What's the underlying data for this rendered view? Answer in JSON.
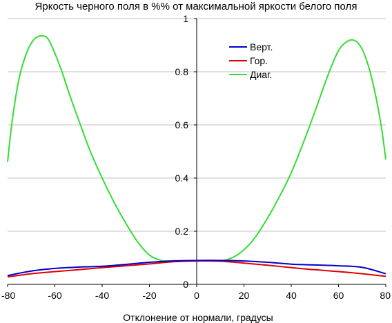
{
  "chart_data": {
    "type": "line",
    "title": "Яркость черного поля в %% от максимальной яркости белого поля",
    "xlabel": "Отклонение от нормали, градусы",
    "ylabel": "",
    "xlim": [
      -80,
      80
    ],
    "ylim": [
      0,
      1
    ],
    "x_ticks": [
      "-80",
      "-60",
      "-40",
      "-20",
      "0",
      "20",
      "40",
      "60",
      "80"
    ],
    "y_ticks": [
      "0",
      "0.2",
      "0.4",
      "0.6",
      "0.8",
      "1"
    ],
    "grid": "horizontal",
    "legend_position": "top-right",
    "series": [
      {
        "name": "Верт.",
        "color": "#0000cc",
        "x": [
          -80,
          -70,
          -60,
          -50,
          -40,
          -30,
          -20,
          -10,
          0,
          10,
          20,
          30,
          40,
          50,
          60,
          70,
          80
        ],
        "y": [
          0.033,
          0.05,
          0.06,
          0.065,
          0.068,
          0.075,
          0.083,
          0.088,
          0.09,
          0.09,
          0.088,
          0.083,
          0.076,
          0.073,
          0.07,
          0.064,
          0.04
        ]
      },
      {
        "name": "Гор.",
        "color": "#dd0000",
        "x": [
          -80,
          -70,
          -60,
          -50,
          -40,
          -30,
          -20,
          -10,
          0,
          10,
          20,
          30,
          40,
          50,
          60,
          70,
          80
        ],
        "y": [
          0.028,
          0.04,
          0.048,
          0.055,
          0.063,
          0.07,
          0.077,
          0.085,
          0.088,
          0.087,
          0.08,
          0.072,
          0.063,
          0.055,
          0.048,
          0.04,
          0.03
        ]
      },
      {
        "name": "Диаг.",
        "color": "#33dd33",
        "x": [
          -80,
          -78,
          -75,
          -72,
          -69,
          -66,
          -63,
          -60,
          -57,
          -54,
          -50,
          -45,
          -40,
          -35,
          -30,
          -25,
          -20,
          -15,
          -10,
          -5,
          0,
          5,
          10,
          15,
          20,
          25,
          30,
          35,
          40,
          45,
          50,
          54,
          57,
          60,
          63,
          66,
          69,
          72,
          75,
          78,
          80
        ],
        "y": [
          0.46,
          0.62,
          0.78,
          0.87,
          0.92,
          0.935,
          0.925,
          0.87,
          0.8,
          0.72,
          0.62,
          0.5,
          0.4,
          0.31,
          0.23,
          0.16,
          0.11,
          0.09,
          0.088,
          0.088,
          0.088,
          0.088,
          0.088,
          0.1,
          0.13,
          0.18,
          0.25,
          0.33,
          0.42,
          0.53,
          0.65,
          0.75,
          0.82,
          0.88,
          0.91,
          0.92,
          0.9,
          0.84,
          0.74,
          0.6,
          0.47
        ]
      }
    ]
  }
}
